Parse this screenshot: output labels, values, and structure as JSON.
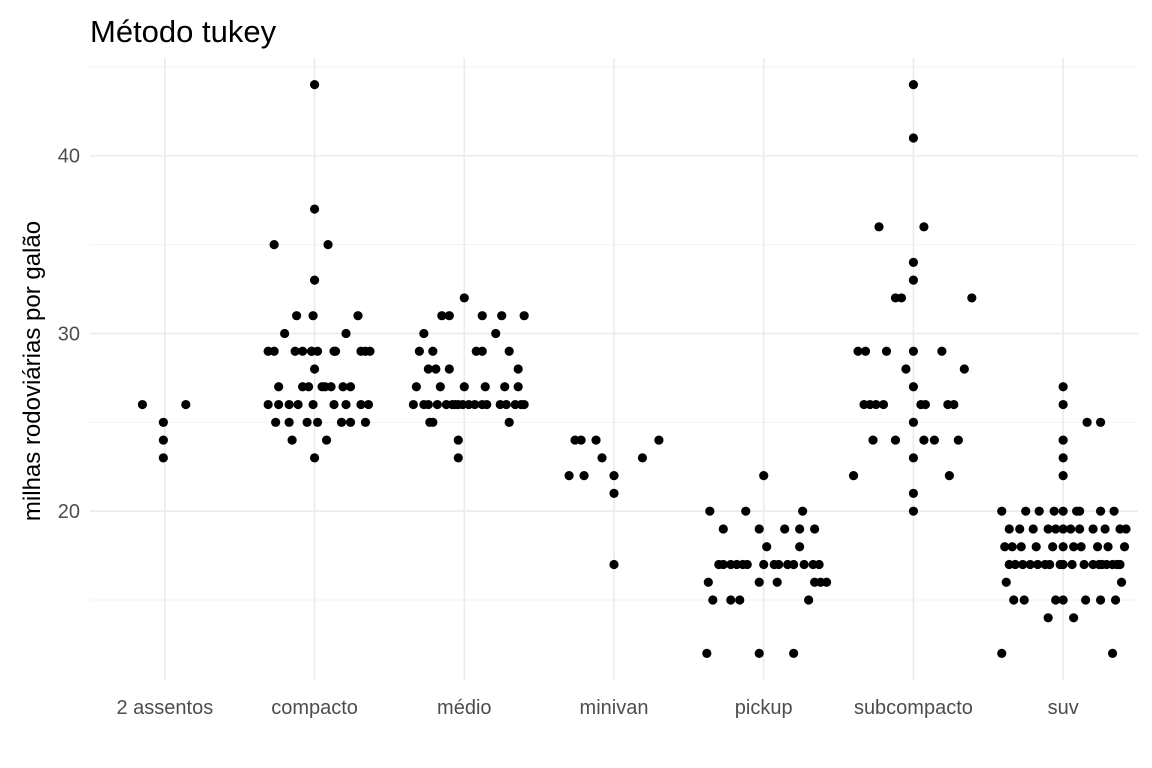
{
  "chart_data": {
    "type": "scatter",
    "title": "Método tukey",
    "xlabel": "",
    "ylabel": "milhas rodoviárias por galão",
    "categories": [
      "2 assentos",
      "compacto",
      "médio",
      "minivan",
      "pickup",
      "subcompacto",
      "suv"
    ],
    "ylim": [
      10.5,
      45.5
    ],
    "yticks": [
      20,
      30,
      40
    ],
    "grid": true,
    "legend": "none",
    "point_color": "#000000",
    "series": [
      {
        "category": "2 assentos",
        "points": [
          [
            -0.15,
            26
          ],
          [
            -0.01,
            25
          ],
          [
            -0.01,
            24
          ],
          [
            -0.01,
            23
          ],
          [
            0.14,
            26
          ]
        ]
      },
      {
        "category": "compacto",
        "points": [
          [
            -0.31,
            26
          ],
          [
            -0.31,
            29
          ],
          [
            -0.27,
            35
          ],
          [
            -0.27,
            29
          ],
          [
            -0.26,
            25
          ],
          [
            -0.24,
            26
          ],
          [
            -0.24,
            27
          ],
          [
            -0.2,
            30
          ],
          [
            -0.17,
            25
          ],
          [
            -0.17,
            26
          ],
          [
            -0.15,
            24
          ],
          [
            -0.13,
            29
          ],
          [
            -0.12,
            31
          ],
          [
            -0.11,
            26
          ],
          [
            -0.08,
            27
          ],
          [
            -0.08,
            29
          ],
          [
            -0.05,
            25
          ],
          [
            -0.04,
            27
          ],
          [
            -0.02,
            29
          ],
          [
            -0.02,
            29
          ],
          [
            -0.01,
            31
          ],
          [
            -0.01,
            26
          ],
          [
            0.0,
            23
          ],
          [
            0.0,
            33
          ],
          [
            0.0,
            37
          ],
          [
            0.0,
            44
          ],
          [
            0.0,
            28
          ],
          [
            0.02,
            25
          ],
          [
            0.02,
            29
          ],
          [
            0.05,
            27
          ],
          [
            0.07,
            27
          ],
          [
            0.08,
            24
          ],
          [
            0.09,
            35
          ],
          [
            0.11,
            27
          ],
          [
            0.13,
            29
          ],
          [
            0.13,
            26
          ],
          [
            0.14,
            29
          ],
          [
            0.18,
            25
          ],
          [
            0.19,
            27
          ],
          [
            0.21,
            30
          ],
          [
            0.21,
            26
          ],
          [
            0.24,
            25
          ],
          [
            0.24,
            27
          ],
          [
            0.29,
            31
          ],
          [
            0.31,
            26
          ],
          [
            0.31,
            29
          ],
          [
            0.34,
            25
          ],
          [
            0.34,
            29
          ],
          [
            0.36,
            26
          ],
          [
            0.37,
            29
          ]
        ]
      },
      {
        "category": "médio",
        "points": [
          [
            -0.34,
            26
          ],
          [
            -0.32,
            27
          ],
          [
            -0.3,
            29
          ],
          [
            -0.27,
            30
          ],
          [
            -0.27,
            26
          ],
          [
            -0.24,
            26
          ],
          [
            -0.24,
            28
          ],
          [
            -0.23,
            25
          ],
          [
            -0.21,
            29
          ],
          [
            -0.21,
            25
          ],
          [
            -0.19,
            28
          ],
          [
            -0.18,
            26
          ],
          [
            -0.16,
            27
          ],
          [
            -0.15,
            31
          ],
          [
            -0.12,
            26
          ],
          [
            -0.1,
            28
          ],
          [
            -0.1,
            31
          ],
          [
            -0.08,
            26
          ],
          [
            -0.06,
            26
          ],
          [
            -0.04,
            24
          ],
          [
            -0.04,
            23
          ],
          [
            -0.04,
            26
          ],
          [
            -0.01,
            26
          ],
          [
            0.0,
            32
          ],
          [
            0.0,
            27
          ],
          [
            0.03,
            26
          ],
          [
            0.07,
            26
          ],
          [
            0.08,
            29
          ],
          [
            0.12,
            26
          ],
          [
            0.12,
            31
          ],
          [
            0.12,
            29
          ],
          [
            0.14,
            27
          ],
          [
            0.15,
            26
          ],
          [
            0.21,
            30
          ],
          [
            0.24,
            26
          ],
          [
            0.25,
            31
          ],
          [
            0.27,
            27
          ],
          [
            0.28,
            26
          ],
          [
            0.3,
            25
          ],
          [
            0.3,
            29
          ],
          [
            0.34,
            26
          ],
          [
            0.36,
            28
          ],
          [
            0.36,
            27
          ],
          [
            0.38,
            26
          ],
          [
            0.4,
            26
          ],
          [
            0.4,
            31
          ]
        ]
      },
      {
        "category": "minivan",
        "points": [
          [
            -0.3,
            22
          ],
          [
            -0.26,
            24
          ],
          [
            -0.22,
            24
          ],
          [
            -0.2,
            22
          ],
          [
            -0.12,
            24
          ],
          [
            -0.08,
            23
          ],
          [
            0.0,
            17
          ],
          [
            0.0,
            22
          ],
          [
            0.0,
            21
          ],
          [
            0.19,
            23
          ],
          [
            0.3,
            24
          ]
        ]
      },
      {
        "category": "pickup",
        "points": [
          [
            -0.38,
            12
          ],
          [
            -0.37,
            16
          ],
          [
            -0.36,
            20
          ],
          [
            -0.34,
            15
          ],
          [
            -0.3,
            17
          ],
          [
            -0.27,
            17
          ],
          [
            -0.27,
            19
          ],
          [
            -0.22,
            15
          ],
          [
            -0.22,
            17
          ],
          [
            -0.18,
            17
          ],
          [
            -0.16,
            15
          ],
          [
            -0.14,
            17
          ],
          [
            -0.12,
            20
          ],
          [
            -0.11,
            17
          ],
          [
            -0.03,
            12
          ],
          [
            -0.03,
            19
          ],
          [
            -0.03,
            16
          ],
          [
            0.0,
            17
          ],
          [
            0.0,
            22
          ],
          [
            0.02,
            18
          ],
          [
            0.07,
            17
          ],
          [
            0.09,
            16
          ],
          [
            0.1,
            17
          ],
          [
            0.14,
            19
          ],
          [
            0.16,
            17
          ],
          [
            0.2,
            12
          ],
          [
            0.2,
            17
          ],
          [
            0.24,
            19
          ],
          [
            0.24,
            18
          ],
          [
            0.26,
            20
          ],
          [
            0.27,
            17
          ],
          [
            0.3,
            15
          ],
          [
            0.33,
            17
          ],
          [
            0.34,
            19
          ],
          [
            0.34,
            16
          ],
          [
            0.37,
            17
          ],
          [
            0.38,
            16
          ],
          [
            0.42,
            16
          ]
        ]
      },
      {
        "category": "subcompacto",
        "points": [
          [
            -0.4,
            22
          ],
          [
            -0.37,
            29
          ],
          [
            -0.33,
            26
          ],
          [
            -0.32,
            29
          ],
          [
            -0.29,
            26
          ],
          [
            -0.27,
            24
          ],
          [
            -0.25,
            26
          ],
          [
            -0.23,
            36
          ],
          [
            -0.2,
            26
          ],
          [
            -0.18,
            29
          ],
          [
            -0.12,
            24
          ],
          [
            -0.12,
            32
          ],
          [
            -0.08,
            32
          ],
          [
            -0.05,
            28
          ],
          [
            0.0,
            20
          ],
          [
            0.0,
            41
          ],
          [
            0.0,
            44
          ],
          [
            0.0,
            34
          ],
          [
            0.0,
            33
          ],
          [
            0.0,
            29
          ],
          [
            0.0,
            27
          ],
          [
            0.0,
            25
          ],
          [
            0.0,
            23
          ],
          [
            0.0,
            21
          ],
          [
            0.05,
            26
          ],
          [
            0.07,
            36
          ],
          [
            0.07,
            24
          ],
          [
            0.08,
            26
          ],
          [
            0.14,
            24
          ],
          [
            0.19,
            29
          ],
          [
            0.23,
            26
          ],
          [
            0.24,
            22
          ],
          [
            0.27,
            26
          ],
          [
            0.3,
            24
          ],
          [
            0.34,
            28
          ],
          [
            0.39,
            32
          ]
        ]
      },
      {
        "category": "suv",
        "points": [
          [
            -0.41,
            12
          ],
          [
            -0.41,
            20
          ],
          [
            -0.39,
            18
          ],
          [
            -0.38,
            16
          ],
          [
            -0.36,
            17
          ],
          [
            -0.36,
            19
          ],
          [
            -0.34,
            18
          ],
          [
            -0.33,
            15
          ],
          [
            -0.32,
            17
          ],
          [
            -0.29,
            19
          ],
          [
            -0.28,
            18
          ],
          [
            -0.27,
            17
          ],
          [
            -0.26,
            15
          ],
          [
            -0.25,
            20
          ],
          [
            -0.22,
            17
          ],
          [
            -0.2,
            19
          ],
          [
            -0.18,
            18
          ],
          [
            -0.17,
            17
          ],
          [
            -0.16,
            20
          ],
          [
            -0.12,
            17
          ],
          [
            -0.1,
            14
          ],
          [
            -0.1,
            19
          ],
          [
            -0.09,
            17
          ],
          [
            -0.07,
            18
          ],
          [
            -0.06,
            20
          ],
          [
            -0.05,
            19
          ],
          [
            -0.05,
            15
          ],
          [
            -0.02,
            17
          ],
          [
            0.0,
            15
          ],
          [
            0.0,
            18
          ],
          [
            0.0,
            19
          ],
          [
            0.0,
            22
          ],
          [
            0.0,
            23
          ],
          [
            0.0,
            24
          ],
          [
            0.0,
            26
          ],
          [
            0.0,
            27
          ],
          [
            0.0,
            17
          ],
          [
            0.0,
            20
          ],
          [
            0.05,
            19
          ],
          [
            0.06,
            17
          ],
          [
            0.07,
            18
          ],
          [
            0.07,
            14
          ],
          [
            0.09,
            20
          ],
          [
            0.11,
            20
          ],
          [
            0.11,
            19
          ],
          [
            0.12,
            18
          ],
          [
            0.14,
            17
          ],
          [
            0.15,
            15
          ],
          [
            0.16,
            25
          ],
          [
            0.2,
            17
          ],
          [
            0.2,
            19
          ],
          [
            0.23,
            18
          ],
          [
            0.24,
            17
          ],
          [
            0.25,
            20
          ],
          [
            0.25,
            15
          ],
          [
            0.25,
            25
          ],
          [
            0.26,
            17
          ],
          [
            0.28,
            19
          ],
          [
            0.29,
            17
          ],
          [
            0.3,
            18
          ],
          [
            0.33,
            17
          ],
          [
            0.33,
            12
          ],
          [
            0.34,
            20
          ],
          [
            0.35,
            15
          ],
          [
            0.36,
            17
          ],
          [
            0.38,
            19
          ],
          [
            0.38,
            17
          ],
          [
            0.39,
            16
          ],
          [
            0.41,
            18
          ],
          [
            0.42,
            19
          ]
        ]
      }
    ]
  }
}
